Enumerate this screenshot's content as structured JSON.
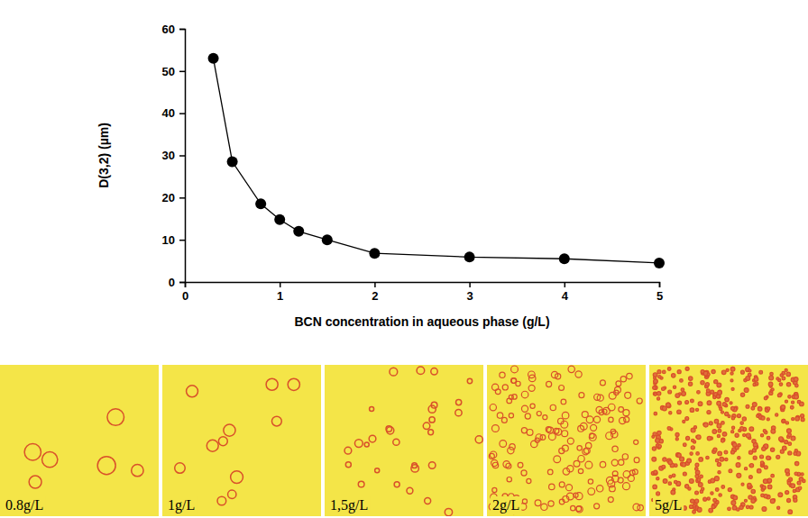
{
  "chart_data": {
    "type": "line",
    "x_label": "BCN concentration in aqueous phase (g/L)",
    "y_label": "D(3,2) (µm)",
    "x": [
      0.3,
      0.5,
      0.8,
      1,
      1.2,
      1.5,
      2,
      3,
      4,
      5
    ],
    "values": [
      53,
      28.5,
      18.5,
      14.8,
      12,
      10,
      6.8,
      5.9,
      5.5,
      4.5
    ],
    "color": "#000000",
    "marker": "circle",
    "grid": false,
    "xlim": [
      0,
      5
    ],
    "xticks": [
      0,
      1,
      2,
      3,
      4,
      5
    ],
    "ylim": [
      0,
      60
    ],
    "yticks": [
      0,
      10,
      20,
      30,
      40,
      50,
      60
    ]
  },
  "images": [
    {
      "label": "0.8g/L"
    },
    {
      "label": "1g/L"
    },
    {
      "label": "1,5g/L"
    },
    {
      "label": "2g/L"
    },
    {
      "label": "5g/L"
    }
  ]
}
